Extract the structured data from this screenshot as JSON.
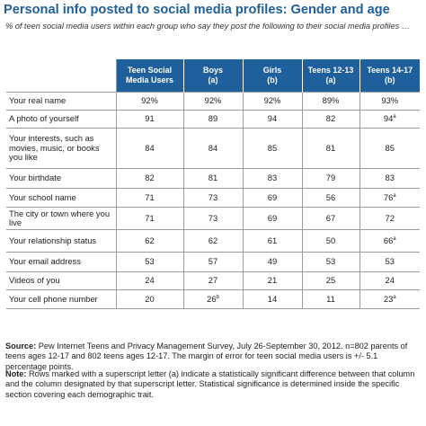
{
  "title": "Personal info posted to social media profiles: Gender and age",
  "subtitle": "% of teen social media users within each group who say they post the following to their social media profiles …",
  "table": {
    "headers": [
      {
        "line1": "Teen Social",
        "line2": "Media Users"
      },
      {
        "line1": "Boys",
        "line2": "(a)"
      },
      {
        "line1": "Girls",
        "line2": "(b)"
      },
      {
        "line1": "Teens 12-13",
        "line2": "(a)"
      },
      {
        "line1": "Teens 14-17",
        "line2": "(b)"
      }
    ]
  },
  "chart_data": {
    "type": "table",
    "columns": [
      "Teen Social Media Users",
      "Boys (a)",
      "Girls (b)",
      "Teens 12-13 (a)",
      "Teens 14-17 (b)"
    ],
    "rows": [
      {
        "label": "Your real name",
        "cells": [
          {
            "v": "92%"
          },
          {
            "v": "92%"
          },
          {
            "v": "92%"
          },
          {
            "v": "89%"
          },
          {
            "v": "93%"
          }
        ],
        "h": 20
      },
      {
        "label": "A photo of yourself",
        "cells": [
          {
            "v": "91"
          },
          {
            "v": "89"
          },
          {
            "v": "94"
          },
          {
            "v": "82"
          },
          {
            "v": "94",
            "sup": "a"
          }
        ],
        "h": 20
      },
      {
        "label": "Your interests, such as movies, music, or books you like",
        "cells": [
          {
            "v": "84"
          },
          {
            "v": "84"
          },
          {
            "v": "85"
          },
          {
            "v": "81"
          },
          {
            "v": "85"
          }
        ],
        "h": 45
      },
      {
        "label": "Your birthdate",
        "cells": [
          {
            "v": "82"
          },
          {
            "v": "81"
          },
          {
            "v": "83"
          },
          {
            "v": "79"
          },
          {
            "v": "83"
          }
        ],
        "h": 22
      },
      {
        "label": "Your school name",
        "cells": [
          {
            "v": "71"
          },
          {
            "v": "73"
          },
          {
            "v": "69"
          },
          {
            "v": "56"
          },
          {
            "v": "76",
            "sup": "a"
          }
        ],
        "h": 21
      },
      {
        "label": "The city or town where you live",
        "cells": [
          {
            "v": "71"
          },
          {
            "v": "73"
          },
          {
            "v": "69"
          },
          {
            "v": "67"
          },
          {
            "v": "72"
          }
        ],
        "h": 25
      },
      {
        "label": "Your relationship status",
        "cells": [
          {
            "v": "62"
          },
          {
            "v": "62"
          },
          {
            "v": "61"
          },
          {
            "v": "50"
          },
          {
            "v": "66",
            "sup": "a"
          }
        ],
        "h": 25
      },
      {
        "label": "Your email address",
        "cells": [
          {
            "v": "53"
          },
          {
            "v": "57"
          },
          {
            "v": "49"
          },
          {
            "v": "53"
          },
          {
            "v": "53"
          }
        ],
        "h": 22
      },
      {
        "label": "Videos of you",
        "cells": [
          {
            "v": "24"
          },
          {
            "v": "27"
          },
          {
            "v": "21"
          },
          {
            "v": "25"
          },
          {
            "v": "24"
          }
        ],
        "h": 20
      },
      {
        "label": "Your cell phone number",
        "cells": [
          {
            "v": "20"
          },
          {
            "v": "26",
            "sup": "b"
          },
          {
            "v": "14"
          },
          {
            "v": "11"
          },
          {
            "v": "23",
            "sup": "a"
          }
        ],
        "h": 21
      }
    ]
  },
  "source": {
    "label": "Source:",
    "text": " Pew Internet Teens and Privacy Management Survey, July 26-September 30, 2012. n=802 parents of teens ages 12-17 and 802 teens ages 12-17.  The margin of error for teen social media users is +/- 5.1 percentage points."
  },
  "note": {
    "label": "Note:",
    "text": " Rows marked with a superscript letter (a) indicate a statistically significant difference between that column and the column designated by that superscript letter. Statistical significance is determined inside the specific section covering each demographic trait."
  }
}
